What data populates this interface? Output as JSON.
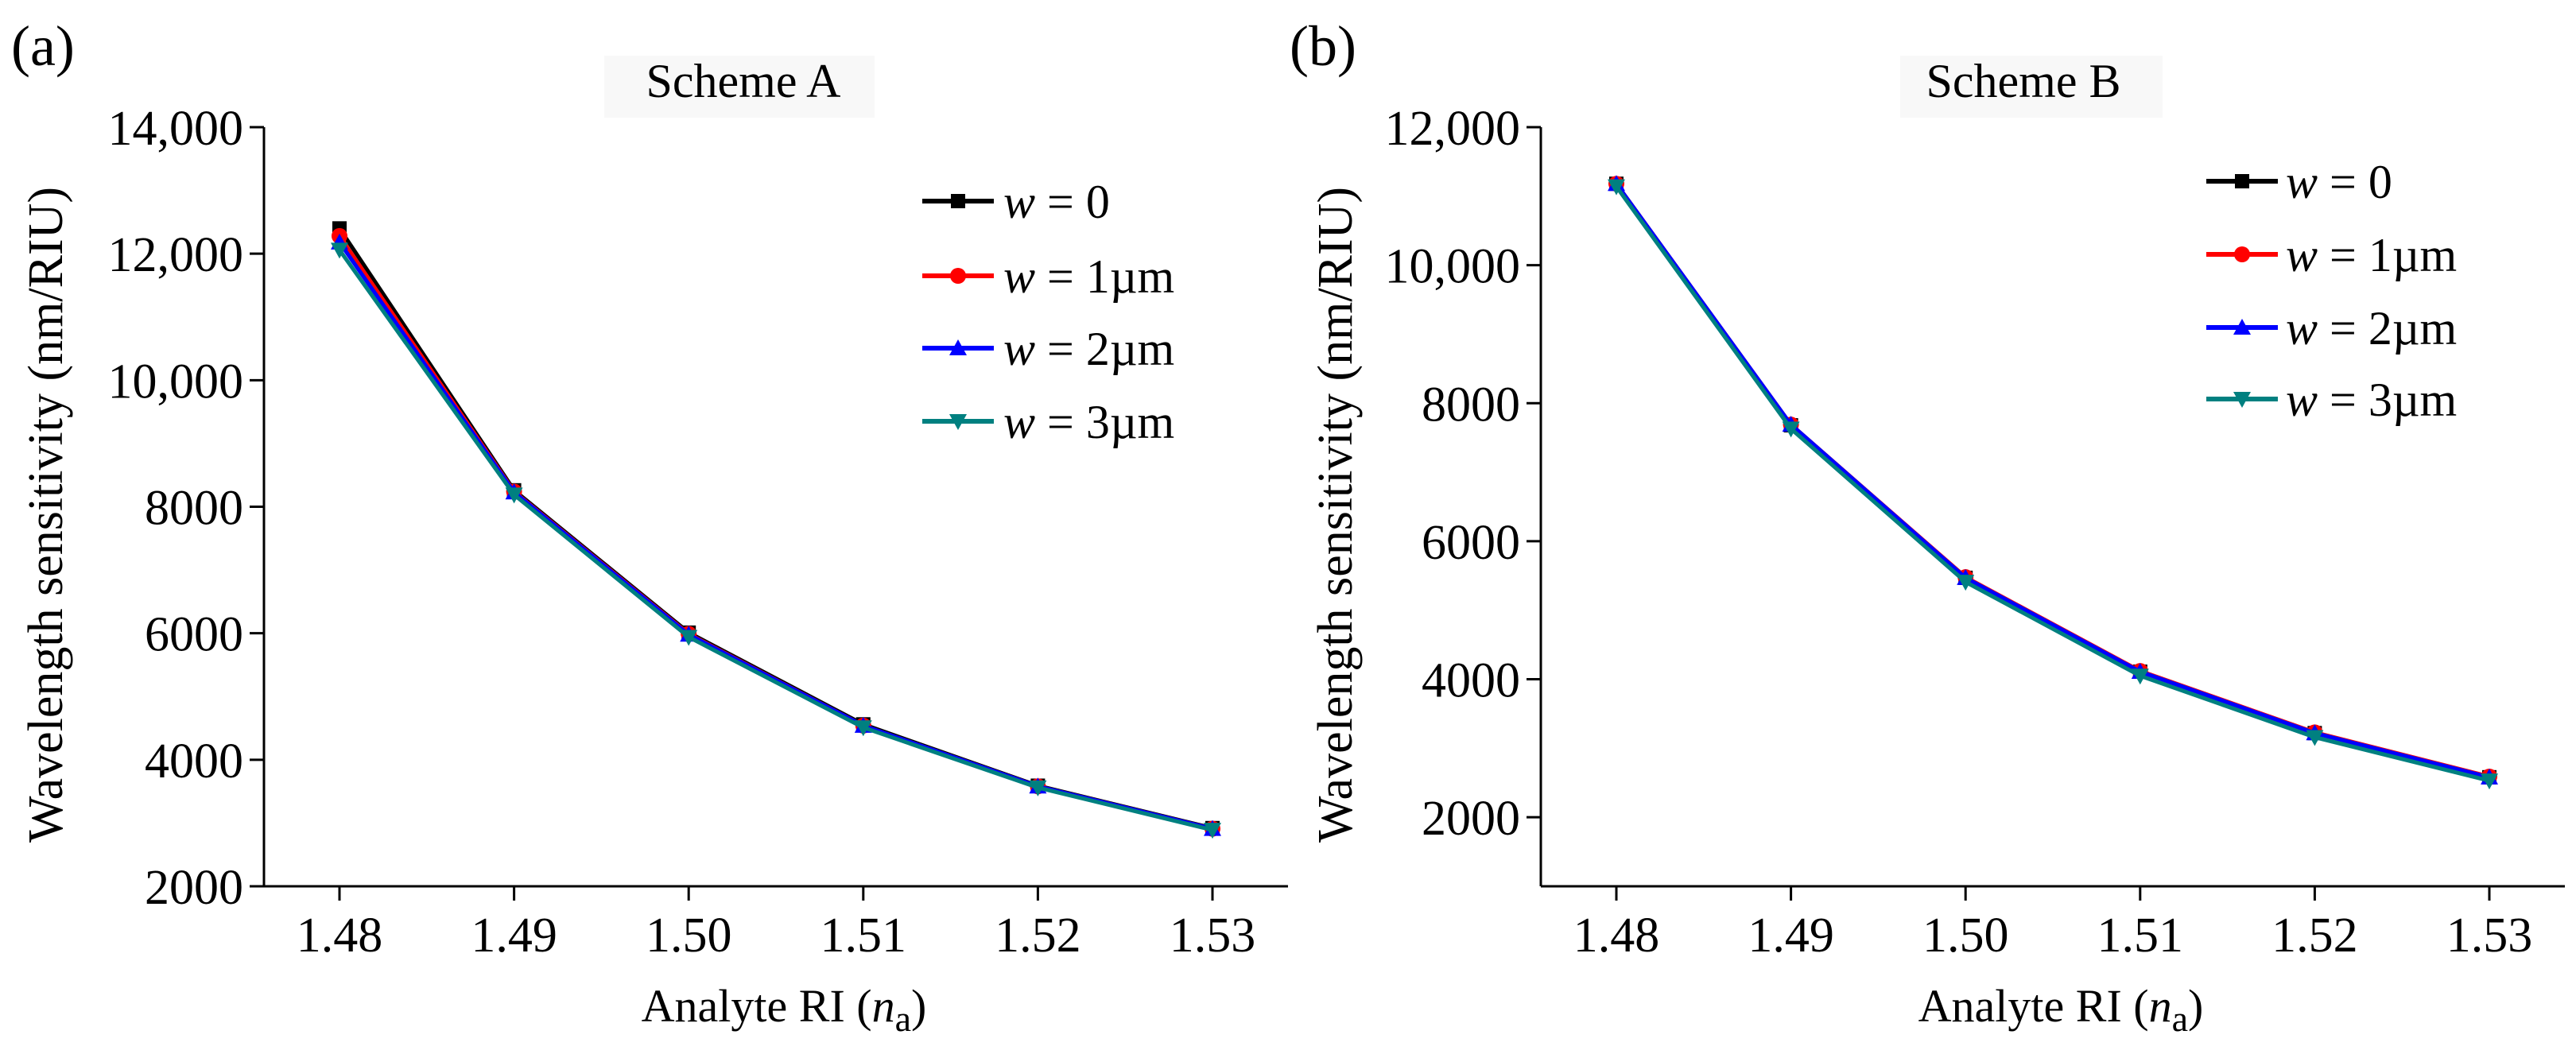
{
  "chart_data": [
    {
      "type": "line",
      "panel_label": "(a)",
      "title": "Scheme A",
      "xlabel_main": "Analyte RI (",
      "xlabel_italic": "n",
      "xlabel_sub": "a",
      "xlabel_close": ")",
      "ylabel": "Wavelength sensitivity (nm/RIU)",
      "categories": [
        "1.48",
        "1.49",
        "1.50",
        "1.51",
        "1.52",
        "1.53"
      ],
      "ylim": [
        2000,
        14000
      ],
      "yticks": [
        2000,
        4000,
        6000,
        8000,
        10000,
        12000,
        14000
      ],
      "ytick_labels": [
        "2000",
        "4000",
        "6000",
        "8000",
        "10,000",
        "12,000",
        "14,000"
      ],
      "legend_position": "top-right",
      "series": [
        {
          "name_italic": "w",
          "name_rest": " = 0",
          "color": "#000000",
          "marker": "square",
          "values": [
            12400,
            8260,
            6010,
            4560,
            3590,
            2920
          ]
        },
        {
          "name_italic": "w",
          "name_rest": " = 1µm",
          "color": "#ff0000",
          "marker": "circle",
          "values": [
            12280,
            8240,
            5990,
            4540,
            3580,
            2910
          ]
        },
        {
          "name_italic": "w",
          "name_rest": " = 2µm",
          "color": "#0000ff",
          "marker": "triangle-up",
          "values": [
            12180,
            8230,
            5980,
            4540,
            3580,
            2910
          ]
        },
        {
          "name_italic": "w",
          "name_rest": " = 3µm",
          "color": "#008080",
          "marker": "triangle-down",
          "values": [
            12060,
            8190,
            5940,
            4510,
            3560,
            2890
          ]
        }
      ]
    },
    {
      "type": "line",
      "panel_label": "(b)",
      "title": "Scheme B",
      "xlabel_main": "Analyte RI (",
      "xlabel_italic": "n",
      "xlabel_sub": "a",
      "xlabel_close": ")",
      "ylabel": "Wavelength sensitivity (nm/RIU)",
      "categories": [
        "1.48",
        "1.49",
        "1.50",
        "1.51",
        "1.52",
        "1.53"
      ],
      "ylim": [
        1000,
        12000
      ],
      "yticks": [
        2000,
        4000,
        6000,
        8000,
        10000,
        12000
      ],
      "ytick_labels": [
        "2000",
        "4000",
        "6000",
        "8000",
        "10,000",
        "12,000"
      ],
      "legend_position": "top-right",
      "series": [
        {
          "name_italic": "w",
          "name_rest": " = 0",
          "color": "#000000",
          "marker": "square",
          "values": [
            11180,
            7680,
            5470,
            4110,
            3220,
            2580
          ]
        },
        {
          "name_italic": "w",
          "name_rest": " = 1µm",
          "color": "#ff0000",
          "marker": "circle",
          "values": [
            11180,
            7690,
            5480,
            4120,
            3230,
            2590
          ]
        },
        {
          "name_italic": "w",
          "name_rest": " = 2µm",
          "color": "#0000ff",
          "marker": "triangle-up",
          "values": [
            11180,
            7690,
            5470,
            4110,
            3220,
            2580
          ]
        },
        {
          "name_italic": "w",
          "name_rest": " = 3µm",
          "color": "#008080",
          "marker": "triangle-down",
          "values": [
            11140,
            7630,
            5410,
            4050,
            3160,
            2530
          ]
        }
      ]
    }
  ]
}
